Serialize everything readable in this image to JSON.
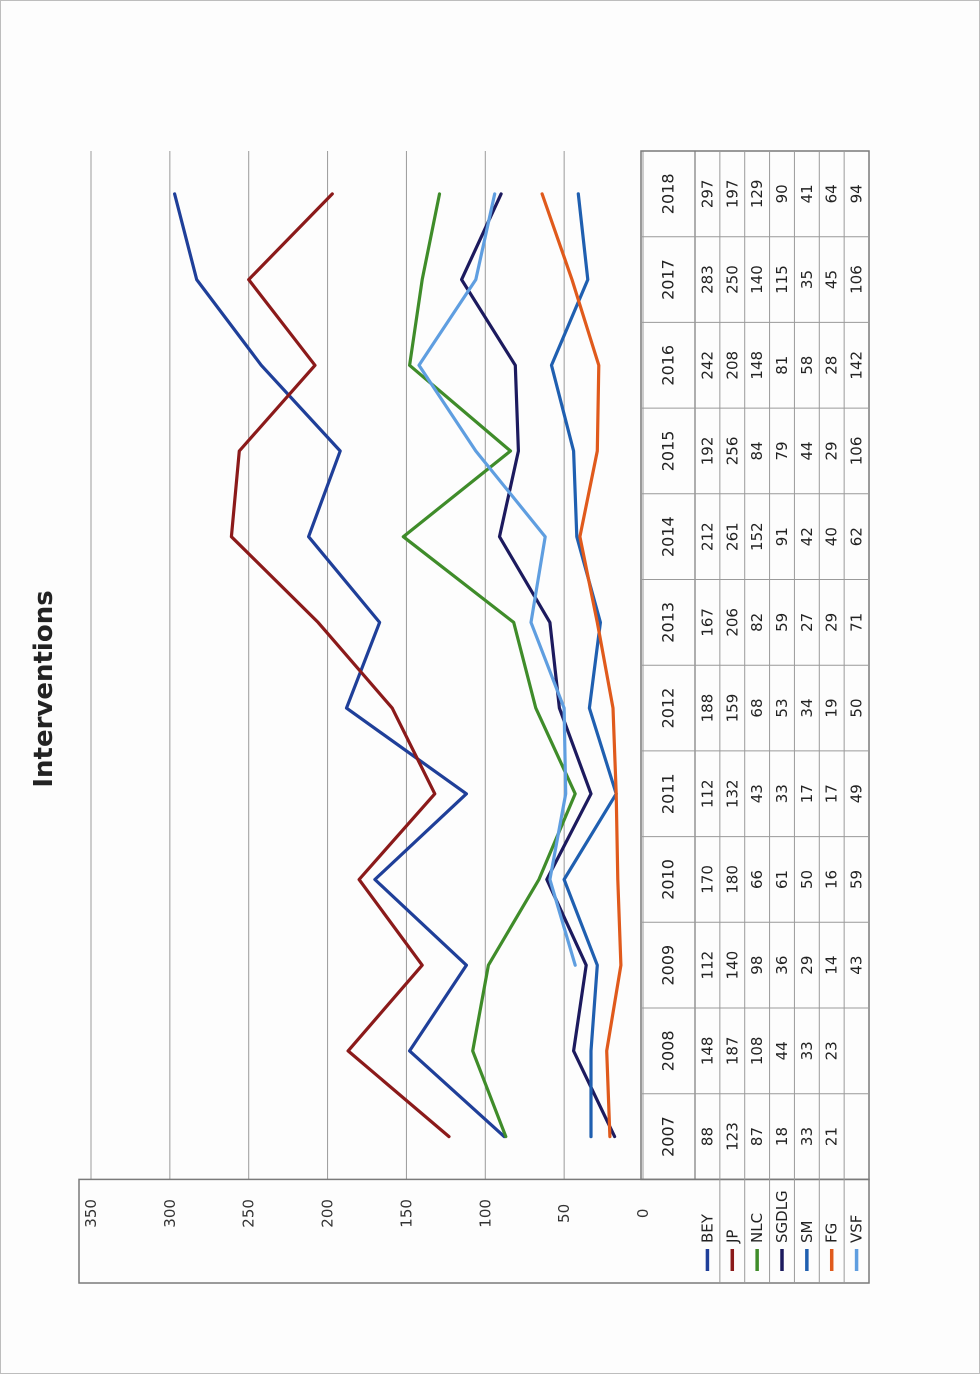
{
  "chart_data": {
    "type": "line",
    "title": "Interventions",
    "orientation": "rotated-90-ccw",
    "categories": [
      "2007",
      "2008",
      "2009",
      "2010",
      "2011",
      "2012",
      "2013",
      "2014",
      "2015",
      "2016",
      "2017",
      "2018"
    ],
    "ylim": [
      0,
      350
    ],
    "yticks": [
      "0",
      "50",
      "100",
      "150",
      "200",
      "250",
      "300",
      "350"
    ],
    "grid": true,
    "legend": "data-table",
    "series": [
      {
        "name": "BEY",
        "color": "#1f3f99",
        "values": [
          88,
          148,
          112,
          170,
          112,
          188,
          167,
          212,
          192,
          242,
          283,
          297
        ]
      },
      {
        "name": "JP",
        "color": "#8b1a1a",
        "values": [
          123,
          187,
          140,
          180,
          132,
          159,
          206,
          261,
          256,
          208,
          250,
          197
        ]
      },
      {
        "name": "NLC",
        "color": "#3f8c2a",
        "values": [
          87,
          108,
          98,
          66,
          43,
          68,
          82,
          152,
          84,
          148,
          140,
          129
        ]
      },
      {
        "name": "SGDLG",
        "color": "#1c1a5e",
        "values": [
          18,
          44,
          36,
          61,
          33,
          53,
          59,
          91,
          79,
          81,
          115,
          90
        ]
      },
      {
        "name": "SM",
        "color": "#1f5fb0",
        "values": [
          33,
          33,
          29,
          50,
          17,
          34,
          27,
          42,
          44,
          58,
          35,
          41
        ]
      },
      {
        "name": "FG",
        "color": "#e05a1c",
        "values": [
          21,
          23,
          14,
          16,
          17,
          19,
          29,
          40,
          29,
          28,
          45,
          64
        ]
      },
      {
        "name": "VSF",
        "color": "#5f9ee0",
        "values": [
          null,
          null,
          43,
          59,
          49,
          50,
          71,
          62,
          106,
          142,
          106,
          94
        ]
      }
    ]
  }
}
